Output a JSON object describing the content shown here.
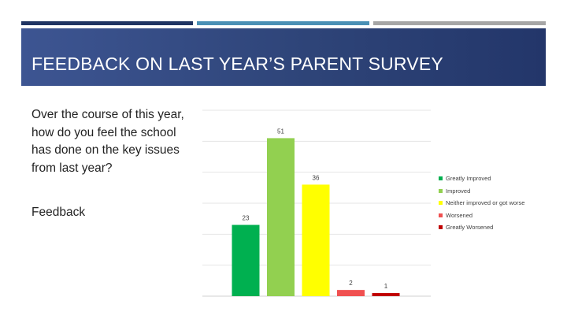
{
  "slide": {
    "title": "FEEDBACK ON LAST YEAR’S PARENT SURVEY",
    "question": "Over the course of this year, how do you feel the school has done on the key issues from last year?",
    "feedback_label": "Feedback"
  },
  "colors": {
    "banner": "#2e4478",
    "accent_dark": "#1f3462",
    "accent_mid": "#4a90b5",
    "accent_grey": "#a6a6a6"
  },
  "chart_data": {
    "type": "bar",
    "categories": [
      "Greatly Improved",
      "Improved",
      "Neither improved or got worse",
      "Worsened",
      "Greatly Worsened"
    ],
    "values": [
      23,
      51,
      36,
      2,
      1
    ],
    "colors": [
      "#00b050",
      "#92d050",
      "#ffff00",
      "#f05050",
      "#c00000"
    ],
    "data_labels": [
      "23",
      "51",
      "36",
      "2",
      "1"
    ],
    "ylim": [
      0,
      60
    ],
    "gridlines": true,
    "grid_step": 10,
    "legend_position": "right",
    "title": "",
    "xlabel": "",
    "ylabel": ""
  }
}
